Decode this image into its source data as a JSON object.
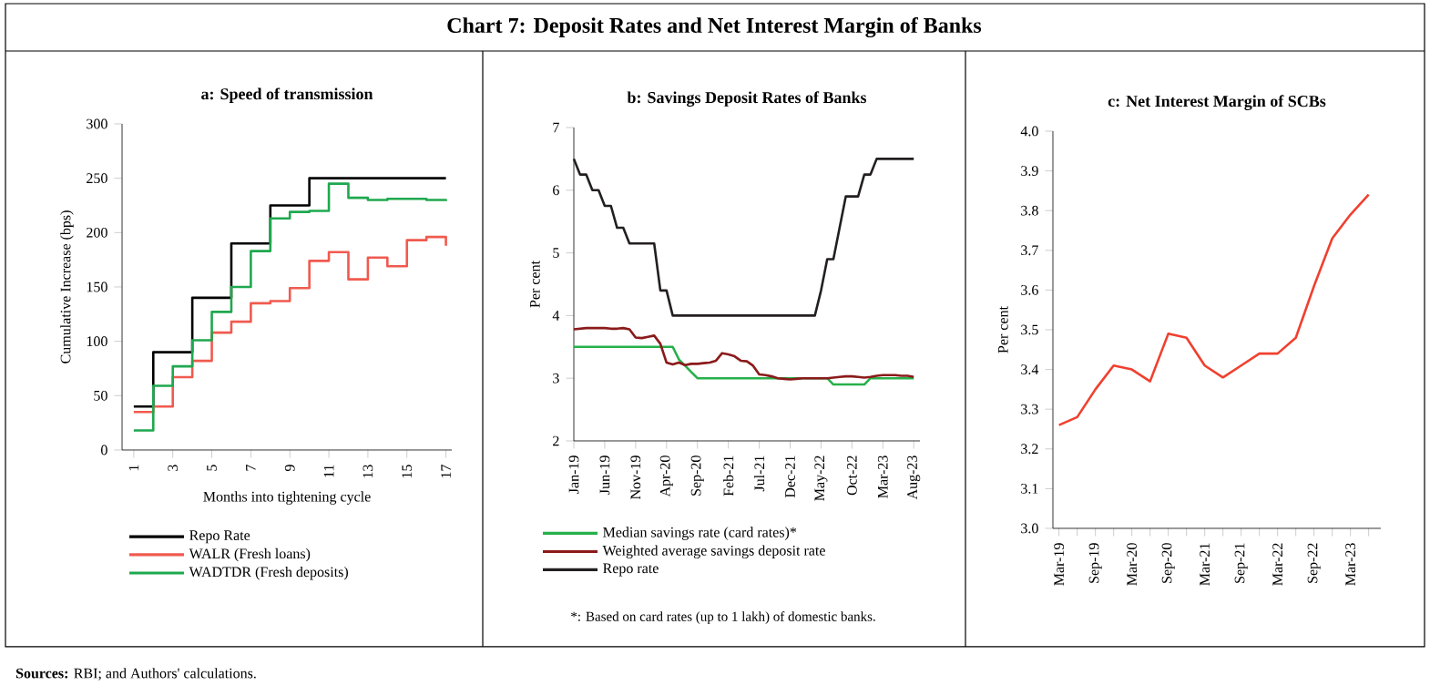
{
  "chart_data": [
    {
      "type": "other",
      "title": "Chart 7: Deposit Rates and Net Interest Margin of Banks",
      "annotations": [
        "**Sources:** RBI; and Authors' calculations."
      ]
    },
    {
      "type": "step",
      "title": "a: Speed of transmission",
      "xlabel": "Months into tightening cycle",
      "ylabel": "Cumulative Increase (bps)",
      "x": [
        1,
        2,
        3,
        4,
        5,
        6,
        7,
        8,
        9,
        10,
        11,
        12,
        13,
        14,
        15,
        16,
        17
      ],
      "xlim": [
        0.4,
        17.3
      ],
      "xticks": [
        1,
        3,
        5,
        7,
        9,
        11,
        13,
        15,
        17
      ],
      "ylim": [
        0,
        300
      ],
      "yticks": [
        0,
        50,
        100,
        150,
        200,
        250,
        300
      ],
      "legend": "bottom",
      "series": [
        {
          "name": "Repo Rate",
          "color": "#000000",
          "values": [
            40,
            90,
            90,
            140,
            140,
            190,
            190,
            225,
            225,
            250,
            250,
            250,
            250,
            250,
            250,
            250,
            250
          ]
        },
        {
          "name": "WALR (Fresh loans)",
          "color": "#f05a4f",
          "values": [
            35,
            40,
            67,
            82,
            108,
            118,
            135,
            137,
            149,
            174,
            182,
            157,
            177,
            169,
            193,
            196,
            188
          ]
        },
        {
          "name": "WADTDR (Fresh deposits)",
          "color": "#1fa84f",
          "values": [
            18,
            59,
            77,
            101,
            127,
            150,
            183,
            213,
            219,
            220,
            245,
            232,
            230,
            231,
            231,
            230,
            229
          ]
        }
      ]
    },
    {
      "type": "line",
      "title": "b: Savings Deposit Rates of Banks",
      "ylabel": "Per cent",
      "x": [
        "2019-01",
        "2019-02",
        "2019-03",
        "2019-04",
        "2019-05",
        "2019-06",
        "2019-07",
        "2019-08",
        "2019-09",
        "2019-10",
        "2019-11",
        "2019-12",
        "2020-01",
        "2020-02",
        "2020-03",
        "2020-04",
        "2020-05",
        "2020-06",
        "2020-07",
        "2020-08",
        "2020-09",
        "2020-10",
        "2020-11",
        "2020-12",
        "2021-01",
        "2021-02",
        "2021-03",
        "2021-04",
        "2021-05",
        "2021-06",
        "2021-07",
        "2021-08",
        "2021-09",
        "2021-10",
        "2021-11",
        "2021-12",
        "2022-01",
        "2022-02",
        "2022-03",
        "2022-04",
        "2022-05",
        "2022-06",
        "2022-07",
        "2022-08",
        "2022-09",
        "2022-10",
        "2022-11",
        "2022-12",
        "2023-01",
        "2023-02",
        "2023-03",
        "2023-04",
        "2023-05",
        "2023-06",
        "2023-07",
        "2023-08"
      ],
      "xlim": [
        "2019-01",
        "2023-09"
      ],
      "xticks": [
        {
          "value": "2019-01",
          "label": "Jan-19"
        },
        {
          "value": "2019-06",
          "label": "Jun-19"
        },
        {
          "value": "2019-11",
          "label": "Nov-19"
        },
        {
          "value": "2020-04",
          "label": "Apr-20"
        },
        {
          "value": "2020-09",
          "label": "Sep-20"
        },
        {
          "value": "2021-02",
          "label": "Feb-21"
        },
        {
          "value": "2021-07",
          "label": "Jul-21"
        },
        {
          "value": "2021-12",
          "label": "Dec-21"
        },
        {
          "value": "2022-05",
          "label": "May-22"
        },
        {
          "value": "2022-10",
          "label": "Oct-22"
        },
        {
          "value": "2023-03",
          "label": "Mar-23"
        },
        {
          "value": "2023-08",
          "label": "Aug-23"
        }
      ],
      "ylim": [
        2,
        7
      ],
      "yticks": [
        2,
        3,
        4,
        5,
        6,
        7
      ],
      "legend": "bottom",
      "annotations": [
        "*: Based on card rates (up to 1 lakh) of domestic banks."
      ],
      "series": [
        {
          "name": "Median savings rate (card rates)*",
          "color": "#27b04a",
          "values": [
            3.5,
            3.5,
            3.5,
            3.5,
            3.5,
            3.5,
            3.5,
            3.5,
            3.5,
            3.5,
            3.5,
            3.5,
            3.5,
            3.5,
            3.5,
            3.5,
            3.5,
            3.3,
            3.2,
            3.1,
            3.0,
            3.0,
            3.0,
            3.0,
            3.0,
            3.0,
            3.0,
            3.0,
            3.0,
            3.0,
            3.0,
            3.0,
            3.0,
            3.0,
            3.0,
            3.0,
            3.0,
            3.0,
            3.0,
            3.0,
            3.0,
            3.0,
            2.9,
            2.9,
            2.9,
            2.9,
            2.9,
            2.9,
            3.0,
            3.0,
            3.0,
            3.0,
            3.0,
            3.0,
            3.0,
            3.0
          ]
        },
        {
          "name": "Weighted average savings deposit rate",
          "color": "#8b1a1a",
          "values": [
            3.78,
            3.79,
            3.8,
            3.8,
            3.8,
            3.8,
            3.79,
            3.79,
            3.8,
            3.78,
            3.65,
            3.64,
            3.66,
            3.68,
            3.55,
            3.25,
            3.22,
            3.25,
            3.21,
            3.23,
            3.23,
            3.24,
            3.25,
            3.28,
            3.4,
            3.38,
            3.35,
            3.28,
            3.27,
            3.2,
            3.06,
            3.05,
            3.03,
            3.0,
            2.99,
            2.98,
            2.99,
            3.0,
            3.0,
            3.0,
            3.0,
            3.0,
            3.01,
            3.02,
            3.03,
            3.03,
            3.02,
            3.01,
            3.02,
            3.04,
            3.05,
            3.05,
            3.05,
            3.04,
            3.04,
            3.02
          ]
        },
        {
          "name": "Repo rate",
          "color": "#231f20",
          "values": [
            6.5,
            6.25,
            6.25,
            6.0,
            6.0,
            5.75,
            5.75,
            5.4,
            5.4,
            5.15,
            5.15,
            5.15,
            5.15,
            5.15,
            4.4,
            4.4,
            4.0,
            4.0,
            4.0,
            4.0,
            4.0,
            4.0,
            4.0,
            4.0,
            4.0,
            4.0,
            4.0,
            4.0,
            4.0,
            4.0,
            4.0,
            4.0,
            4.0,
            4.0,
            4.0,
            4.0,
            4.0,
            4.0,
            4.0,
            4.0,
            4.4,
            4.9,
            4.9,
            5.4,
            5.9,
            5.9,
            5.9,
            6.25,
            6.25,
            6.5,
            6.5,
            6.5,
            6.5,
            6.5,
            6.5,
            6.5
          ]
        }
      ]
    },
    {
      "type": "line",
      "title": "c: Net Interest Margin of SCBs",
      "ylabel": "Per cent",
      "x": [
        "2019-03",
        "2019-06",
        "2019-09",
        "2019-12",
        "2020-03",
        "2020-06",
        "2020-09",
        "2020-12",
        "2021-03",
        "2021-06",
        "2021-09",
        "2021-12",
        "2022-03",
        "2022-06",
        "2022-09",
        "2022-12",
        "2023-03",
        "2023-06"
      ],
      "xlim": [
        "2019-02",
        "2023-08"
      ],
      "xticks": [
        {
          "value": "2019-03",
          "label": "Mar-19"
        },
        {
          "value": "2019-06",
          "label": null
        },
        {
          "value": "2019-09",
          "label": "Sep-19"
        },
        {
          "value": "2019-12",
          "label": null
        },
        {
          "value": "2020-03",
          "label": "Mar-20"
        },
        {
          "value": "2020-06",
          "label": null
        },
        {
          "value": "2020-09",
          "label": "Sep-20"
        },
        {
          "value": "2020-12",
          "label": null
        },
        {
          "value": "2021-03",
          "label": "Mar-21"
        },
        {
          "value": "2021-06",
          "label": null
        },
        {
          "value": "2021-09",
          "label": "Sep-21"
        },
        {
          "value": "2021-12",
          "label": null
        },
        {
          "value": "2022-03",
          "label": "Mar-22"
        },
        {
          "value": "2022-06",
          "label": null
        },
        {
          "value": "2022-09",
          "label": "Sep-22"
        },
        {
          "value": "2022-12",
          "label": null
        },
        {
          "value": "2023-03",
          "label": "Mar-23"
        },
        {
          "value": "2023-06",
          "label": null
        }
      ],
      "ylim": [
        3.0,
        4.0
      ],
      "yticks": [
        {
          "value": 3.0,
          "label": "3.0"
        },
        3.1,
        3.2,
        3.3,
        3.4,
        3.5,
        3.6,
        3.7,
        3.8,
        3.9,
        {
          "value": 4.0,
          "label": "4.0"
        }
      ],
      "series": [
        {
          "color": "#f0402f",
          "values": [
            3.26,
            3.28,
            3.35,
            3.41,
            3.4,
            3.37,
            3.49,
            3.48,
            3.41,
            3.38,
            3.41,
            3.44,
            3.44,
            3.48,
            3.61,
            3.73,
            3.79,
            3.84
          ]
        }
      ]
    }
  ]
}
